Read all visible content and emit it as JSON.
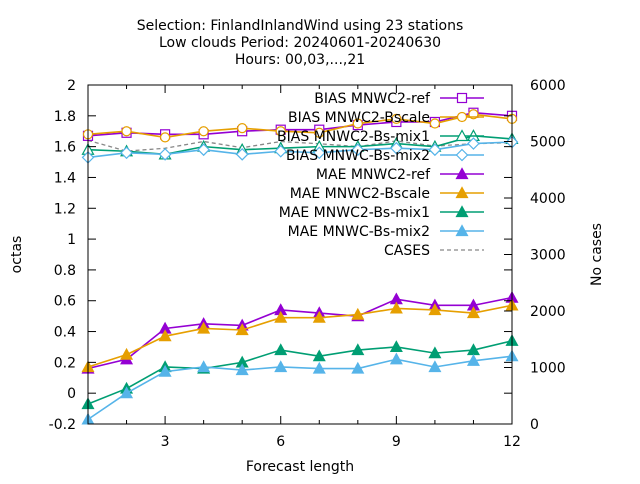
{
  "chart_data": {
    "type": "line",
    "title": [
      "Selection: FinlandInlandWind using    23 stations",
      "Low clouds   Period: 20240601-20240630",
      "Hours: 00,03,...,21"
    ],
    "xlabel": "Forecast length",
    "ylabel": "octas",
    "y2label": "No cases",
    "xlim": [
      1,
      12
    ],
    "ylim": [
      -0.2,
      2
    ],
    "y2lim": [
      0,
      6000
    ],
    "xticks": [
      3,
      6,
      9,
      12
    ],
    "yticks": [
      -0.2,
      0,
      0.2,
      0.4,
      0.6,
      0.8,
      1,
      1.2,
      1.4,
      1.6,
      1.8,
      2
    ],
    "y2ticks": [
      0,
      1000,
      2000,
      3000,
      4000,
      5000,
      6000
    ],
    "grid": false,
    "legend": "top-right",
    "x": [
      1,
      2,
      3,
      4,
      5,
      6,
      7,
      8,
      9,
      10,
      11,
      12
    ],
    "series": [
      {
        "name": "BIAS MNWC2-ref",
        "axis": "y1",
        "color": "#9400d3",
        "marker": "square-open",
        "values": [
          1.67,
          1.69,
          1.68,
          1.68,
          1.7,
          1.71,
          1.71,
          1.74,
          1.76,
          1.76,
          1.82,
          1.8
        ]
      },
      {
        "name": "BIAS MNWC2-Bscale",
        "axis": "y1",
        "color": "#e69f00",
        "marker": "circle-open",
        "values": [
          1.68,
          1.7,
          1.66,
          1.7,
          1.72,
          1.7,
          1.69,
          1.75,
          1.78,
          1.75,
          1.81,
          1.78
        ]
      },
      {
        "name": "BIAS MNWC2-Bs-mix1",
        "axis": "y1",
        "color": "#009e73",
        "marker": "triangle-open",
        "values": [
          1.58,
          1.57,
          1.55,
          1.6,
          1.58,
          1.59,
          1.6,
          1.6,
          1.62,
          1.6,
          1.67,
          1.65
        ]
      },
      {
        "name": "BIAS MNWC-Bs-mix2",
        "axis": "y1",
        "color": "#56b4e9",
        "marker": "diamond-open",
        "values": [
          1.53,
          1.56,
          1.55,
          1.58,
          1.55,
          1.57,
          1.56,
          1.58,
          1.59,
          1.58,
          1.62,
          1.63
        ]
      },
      {
        "name": "MAE MNWC2-ref",
        "axis": "y1",
        "color": "#9400d3",
        "marker": "triangle",
        "values": [
          0.16,
          0.22,
          0.42,
          0.45,
          0.44,
          0.54,
          0.52,
          0.5,
          0.61,
          0.57,
          0.57,
          0.62
        ]
      },
      {
        "name": "MAE MNWC2-Bscale",
        "axis": "y1",
        "color": "#e69f00",
        "marker": "triangle",
        "values": [
          0.17,
          0.25,
          0.37,
          0.42,
          0.41,
          0.49,
          0.49,
          0.51,
          0.55,
          0.54,
          0.52,
          0.57
        ]
      },
      {
        "name": "MAE MNWC2-Bs-mix1",
        "axis": "y1",
        "color": "#009e73",
        "marker": "triangle",
        "values": [
          -0.07,
          0.03,
          0.17,
          0.16,
          0.2,
          0.28,
          0.24,
          0.28,
          0.3,
          0.26,
          0.28,
          0.34
        ]
      },
      {
        "name": "MAE MNWC-Bs-mix2",
        "axis": "y1",
        "color": "#56b4e9",
        "marker": "triangle",
        "values": [
          -0.17,
          0.0,
          0.14,
          0.17,
          0.15,
          0.17,
          0.16,
          0.16,
          0.22,
          0.17,
          0.21,
          0.24
        ]
      },
      {
        "name": "CASES",
        "axis": "y2",
        "color": "#888888",
        "marker": "none",
        "dash": "dashed",
        "values": [
          5020,
          4830,
          4880,
          5000,
          4890,
          5000,
          4960,
          4910,
          5010,
          4920,
          4960,
          4980
        ]
      }
    ]
  }
}
